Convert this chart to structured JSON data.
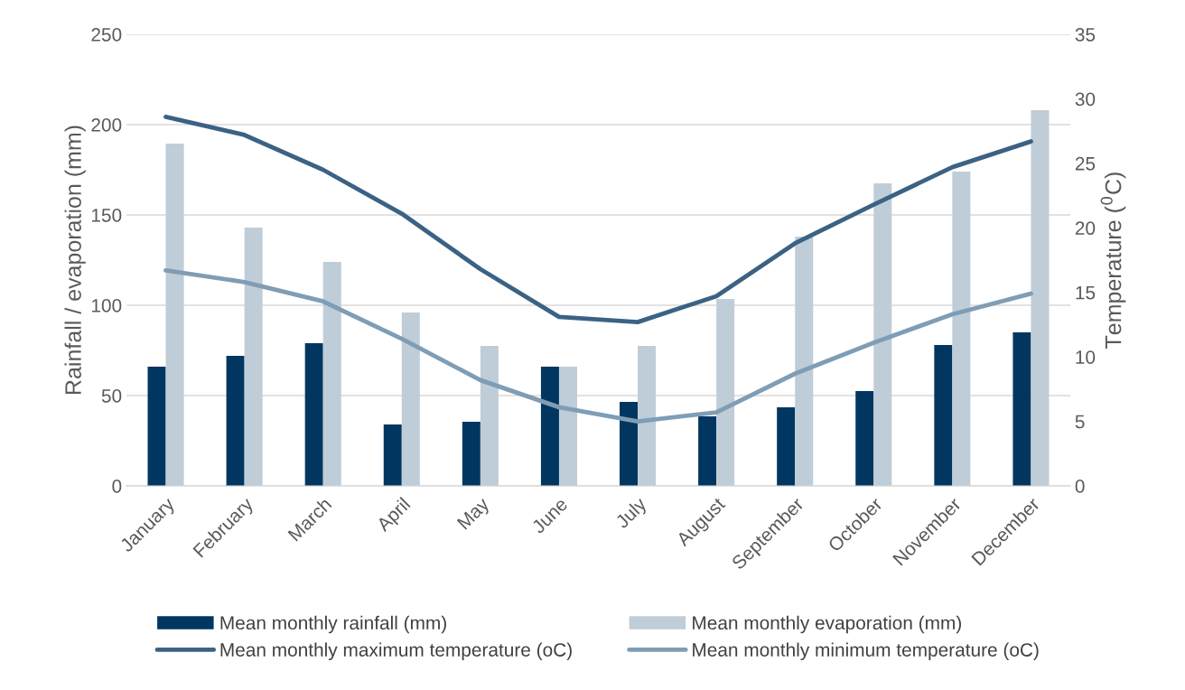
{
  "chart_data": {
    "type": "bar",
    "categories": [
      "January",
      "February",
      "March",
      "April",
      "May",
      "June",
      "July",
      "August",
      "September",
      "October",
      "November",
      "December"
    ],
    "ylabel": "Rainfall / evaporation (mm)",
    "y2label": "Temperature ($^{0}$C)",
    "ylim": [
      0,
      250
    ],
    "yticks": [
      0,
      50,
      100,
      150,
      200,
      250
    ],
    "y2lim": [
      0,
      35
    ],
    "y2ticks": [
      0,
      5,
      10,
      15,
      20,
      25,
      30,
      35
    ],
    "grid": "y",
    "legend": "bottom",
    "series": [
      {
        "name": "Mean monthly rainfall (mm)",
        "color": "#003660",
        "values": [
          66,
          72,
          79,
          34,
          35.5,
          66,
          46.5,
          38.5,
          43.5,
          52.5,
          78,
          85
        ]
      },
      {
        "name": "Mean monthly evaporation (mm)",
        "color": "#bfcdd8",
        "values": [
          189.5,
          143,
          124,
          96,
          77.5,
          66,
          77.5,
          103.5,
          138,
          167.5,
          174,
          208
        ]
      },
      {
        "name": "Mean monthly maximum temperature (oC)",
        "type": "line",
        "axis": "y2",
        "color": "#3b6284",
        "values": [
          28.6,
          27.2,
          24.5,
          21.1,
          16.8,
          13.1,
          12.7,
          14.7,
          18.8,
          21.8,
          24.7,
          26.7
        ]
      },
      {
        "name": "Mean monthly minimum temperature (oC)",
        "type": "line",
        "axis": "y2",
        "color": "#7f9db5",
        "values": [
          16.7,
          15.8,
          14.3,
          11.4,
          8.2,
          6.1,
          5.0,
          5.7,
          8.7,
          11.1,
          13.3,
          14.9
        ]
      }
    ]
  }
}
